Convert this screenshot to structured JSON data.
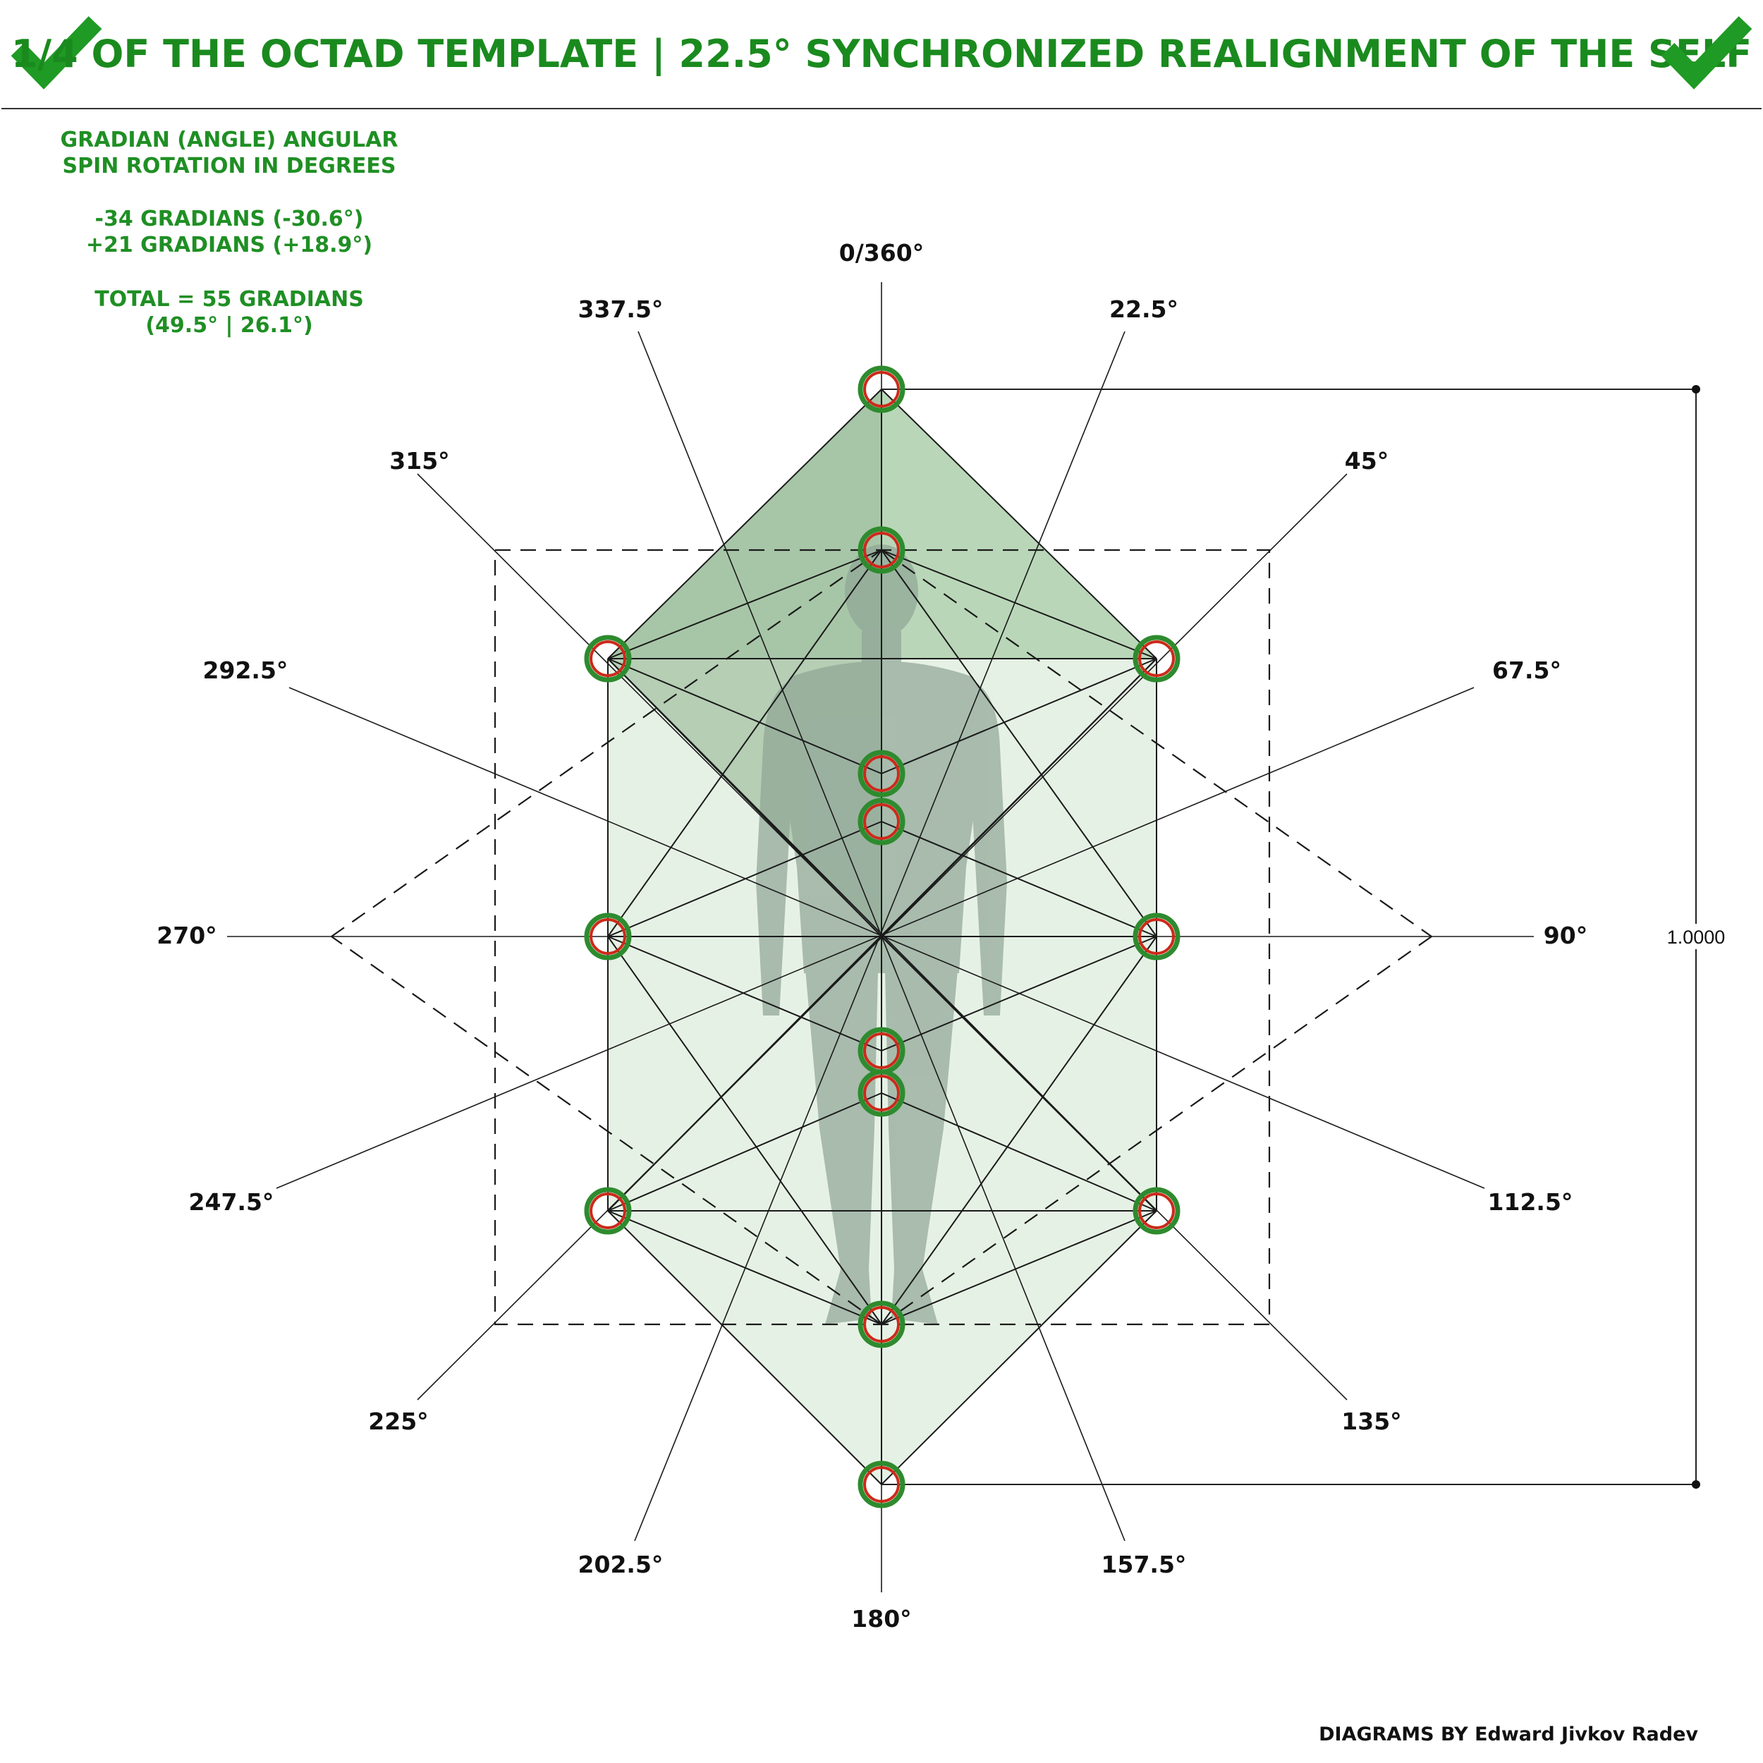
{
  "header": {
    "title": "1/4 OF THE OCTAD TEMPLATE | 22.5° SYNCHRONIZED REALIGNMENT OF THE SELF",
    "left_icon": "checkmark-icon",
    "right_icon": "checkmark-icon"
  },
  "info": {
    "line1": "GRADIAN (ANGLE) ANGULAR",
    "line2": "SPIN ROTATION IN DEGREES",
    "line3": "-34 GRADIANS (-30.6°)",
    "line4": "+21 GRADIANS (+18.9°)",
    "line5": "TOTAL = 55 GRADIANS",
    "line6": "(49.5° | 26.1°)"
  },
  "angles": {
    "a0": "0/360°",
    "a22": "22.5°",
    "a45": "45°",
    "a67": "67.5°",
    "a90": "90°",
    "a112": "112.5°",
    "a135": "135°",
    "a157": "157.5°",
    "a180": "180°",
    "a202": "202.5°",
    "a225": "225°",
    "a247": "247.5°",
    "a270": "270°",
    "a292": "292.5°",
    "a315": "315°",
    "a337": "337.5°"
  },
  "dimension": {
    "label": "1.0000"
  },
  "credit": "DIAGRAMS BY Edward Jivkov Radev",
  "colors": {
    "title_green": "#1a8a1e",
    "fill_green": "#b9d7b8",
    "marker_outer": "#2e8b2e",
    "marker_inner": "#cc2a1a",
    "figure": "#8fa596"
  }
}
